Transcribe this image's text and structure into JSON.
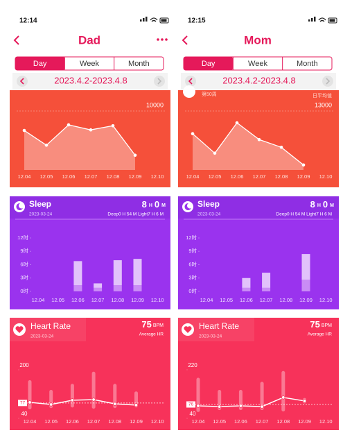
{
  "panels": [
    {
      "time": "12:14",
      "title": "Dad",
      "tabs": [
        "Day",
        "Week",
        "Month"
      ],
      "date_range": "2023.4.2-2023.4.8",
      "steps": {
        "ytick": 10000,
        "x": [
          "12.04",
          "12.05",
          "12.06",
          "12.07",
          "12.08",
          "12.09",
          "12.10"
        ],
        "values": [
          6700,
          4200,
          7650,
          6800,
          7500,
          2500,
          null
        ]
      },
      "sleep": {
        "title": "Sleep",
        "date": "2023-03-24",
        "hours": 8,
        "h_unit": "H",
        "minutes": 0,
        "m_unit": "M",
        "detail": "Deep0 H 54 M  Light7 H 6 M",
        "yticks": [
          {
            "value": 12,
            "label": "12时"
          },
          {
            "value": 9,
            "label": "9时"
          },
          {
            "value": 6,
            "label": "6时"
          },
          {
            "value": 3,
            "label": "3时"
          },
          {
            "value": 0,
            "label": "0时"
          }
        ],
        "x": [
          "12.04",
          "12.05",
          "12.06",
          "12.07",
          "12.08",
          "12.09",
          "12.10"
        ],
        "deep": [
          null,
          null,
          1.4,
          0.8,
          1.4,
          1.4,
          null
        ],
        "light": [
          null,
          null,
          5.4,
          1.0,
          5.6,
          5.9,
          null
        ]
      },
      "heart": {
        "title": "Heart Rate",
        "date": "2023-03-24",
        "avg": 75,
        "unit": "BPM",
        "avg_label": "Average HR",
        "yticks": [
          40,
          200
        ],
        "avg_line": 77,
        "x": [
          "12.04",
          "12.05",
          "12.06",
          "12.07",
          "12.08",
          "12.09",
          "12.10"
        ],
        "low": [
          56,
          60,
          62,
          58,
          60,
          62,
          null
        ],
        "high": [
          152,
          120,
          140,
          180,
          140,
          115,
          null
        ],
        "values": [
          79,
          72,
          86,
          88,
          74,
          70,
          null
        ]
      }
    },
    {
      "time": "12:15",
      "title": "Mom",
      "tabs": [
        "Day",
        "Week",
        "Month"
      ],
      "date_range": "2023.4.2-2023.4.8",
      "steps": {
        "notes": [
          "第50周",
          "日平均值"
        ],
        "ytick": 13000,
        "x": [
          "12.04",
          "12.05",
          "12.06",
          "12.07",
          "12.08",
          "12.09",
          "12.10"
        ],
        "values": [
          8000,
          3700,
          10400,
          6700,
          5000,
          1100,
          null
        ]
      },
      "sleep": {
        "title": "Sleep",
        "date": "2023-03-24",
        "hours": 8,
        "h_unit": "H",
        "minutes": 0,
        "m_unit": "M",
        "detail": "Deep0 H 54 M  Light7 H 6 M",
        "yticks": [
          {
            "value": 12,
            "label": "12时"
          },
          {
            "value": 9,
            "label": "9时"
          },
          {
            "value": 6,
            "label": "6时"
          },
          {
            "value": 3,
            "label": "3时"
          },
          {
            "value": 0,
            "label": "0时"
          }
        ],
        "x": [
          "12.04",
          "12.05",
          "12.06",
          "12.07",
          "12.08",
          "12.09",
          "12.10"
        ],
        "deep": [
          null,
          null,
          0.8,
          0.8,
          null,
          2.6,
          null
        ],
        "light": [
          null,
          null,
          2.2,
          3.4,
          null,
          5.8,
          null
        ]
      },
      "heart": {
        "title": "Heart Rate",
        "date": "2023-03-24",
        "avg": 75,
        "unit": "BPM",
        "avg_label": "Average HR",
        "yticks": [
          40,
          220
        ],
        "avg_line": 76,
        "x": [
          "12.04",
          "12.05",
          "12.06",
          "12.07",
          "12.08",
          "12.09",
          "12.10"
        ],
        "low": [
          48,
          55,
          55,
          55,
          50,
          80,
          null
        ],
        "high": [
          175,
          130,
          130,
          160,
          200,
          100,
          null
        ],
        "values": [
          71,
          68,
          71,
          68,
          102,
          89,
          null
        ]
      }
    }
  ]
}
